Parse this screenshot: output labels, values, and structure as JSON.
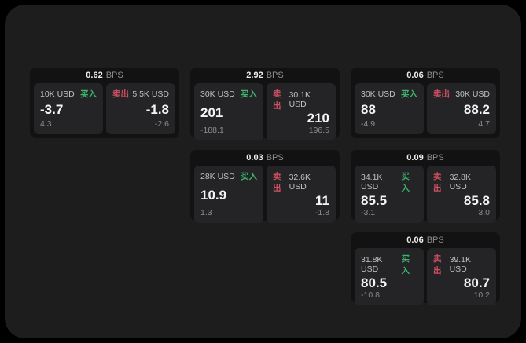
{
  "labels": {
    "bps_unit": "BPS",
    "buy": "买入",
    "sell": "卖出"
  },
  "colors": {
    "background": "#000000",
    "panel": "#1d1d1e",
    "card": "#121212",
    "tile": "#242426",
    "value_text": "#f5f5f5",
    "label_text": "#c0c0c0",
    "muted_text": "#8c8c8c",
    "header_unit_text": "#8d8d8d",
    "buy_green": "#3db56c",
    "sell_red": "#d04f63"
  },
  "cards": [
    {
      "bps": "0.62",
      "buy": {
        "amount": "10K USD",
        "value": "-3.7",
        "delta": "4.3"
      },
      "sell": {
        "amount": "5.5K USD",
        "value": "-1.8",
        "delta": "-2.6"
      }
    },
    {
      "bps": "2.92",
      "buy": {
        "amount": "30K USD",
        "value": "201",
        "delta": "-188.1"
      },
      "sell": {
        "amount": "30.1K USD",
        "value": "210",
        "delta": "196.5"
      }
    },
    {
      "bps": "0.06",
      "buy": {
        "amount": "30K USD",
        "value": "88",
        "delta": "-4.9"
      },
      "sell": {
        "amount": "30K USD",
        "value": "88.2",
        "delta": "4.7"
      }
    },
    {
      "bps": "0.03",
      "buy": {
        "amount": "28K USD",
        "value": "10.9",
        "delta": "1.3"
      },
      "sell": {
        "amount": "32.6K USD",
        "value": "11",
        "delta": "-1.8"
      }
    },
    {
      "bps": "0.09",
      "buy": {
        "amount": "34.1K USD",
        "value": "85.5",
        "delta": "-3.1"
      },
      "sell": {
        "amount": "32.8K USD",
        "value": "85.8",
        "delta": "3.0"
      }
    },
    {
      "bps": "0.06",
      "buy": {
        "amount": "31.8K USD",
        "value": "80.5",
        "delta": "-10.8"
      },
      "sell": {
        "amount": "39.1K USD",
        "value": "80.7",
        "delta": "10.2"
      }
    }
  ]
}
